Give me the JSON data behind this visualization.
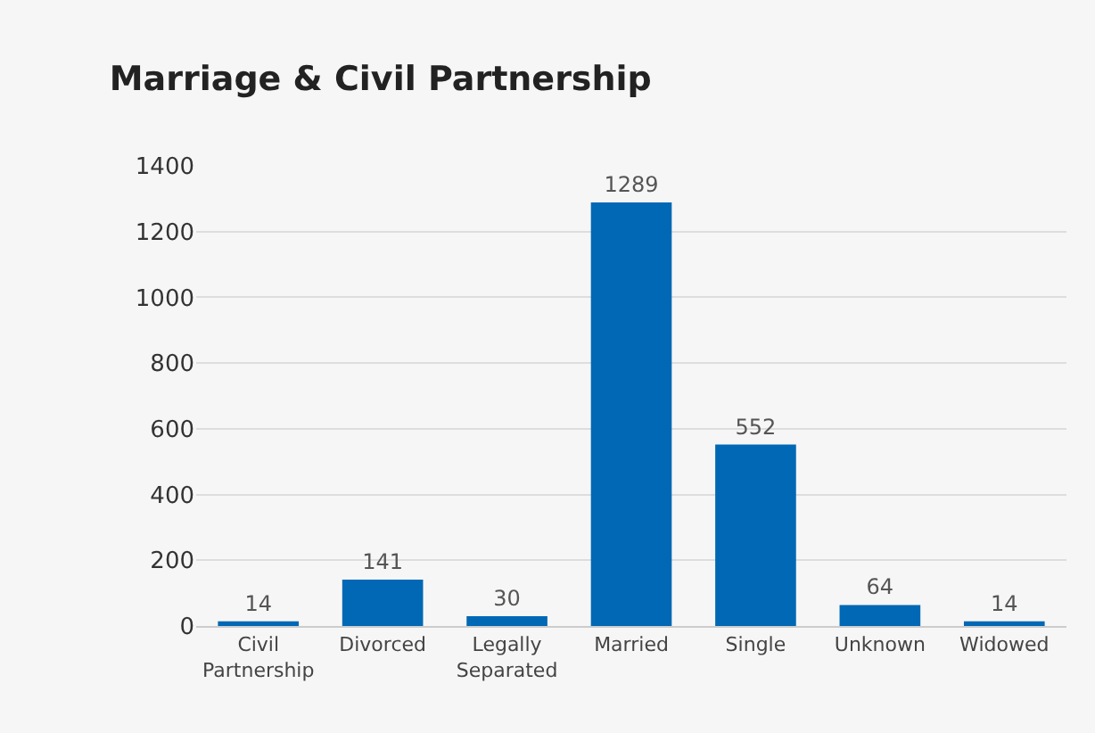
{
  "chart_data": {
    "type": "bar",
    "title": "Marriage & Civil Partnership",
    "categories": [
      "Civil Partnership",
      "Divorced",
      "Legally Separated",
      "Married",
      "Single",
      "Unknown",
      "Widowed"
    ],
    "values": [
      14,
      141,
      30,
      1289,
      552,
      64,
      14
    ],
    "color": "#0068b4",
    "ylim": [
      0,
      1400
    ],
    "yticks": [
      0,
      200,
      400,
      600,
      800,
      1000,
      1200,
      1400
    ],
    "grid": "y",
    "data_labels": true
  }
}
